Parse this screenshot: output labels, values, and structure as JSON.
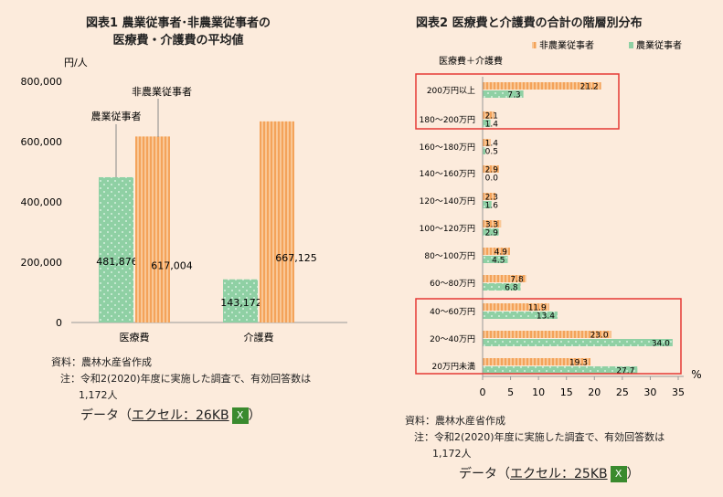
{
  "fig1": {
    "title1": "図表1 農業従事者･非農業従事者の",
    "title2": "医療費・介護費の平均値"
  },
  "fig2": {
    "title": "図表2 医療費と介護費の合計の階層別分布"
  },
  "chart_data": [
    {
      "type": "bar",
      "title": "図表1 農業従事者･非農業従事者の医療費・介護費の平均値",
      "ylabel": "円/人",
      "categories": [
        "医療費",
        "介護費"
      ],
      "series": [
        {
          "name": "農業従事者",
          "values": [
            481876,
            143172
          ],
          "labels": [
            "481,876",
            "143,172"
          ]
        },
        {
          "name": "非農業従事者",
          "values": [
            617004,
            667125
          ],
          "labels": [
            "617,004",
            "667,125"
          ]
        }
      ],
      "ylim": [
        0,
        800000
      ],
      "yticks": [
        0,
        200000,
        400000,
        600000,
        800000
      ],
      "ytick_labels": [
        "0",
        "200,000",
        "400,000",
        "600,000",
        "800,000"
      ]
    },
    {
      "type": "bar",
      "orientation": "horizontal",
      "title": "図表2 医療費と介護費の合計の階層別分布",
      "ylabel": "医療費＋介護費",
      "xlabel": "%",
      "categories": [
        "200万円以上",
        "180～200万円",
        "160～180万円",
        "140～160万円",
        "120～140万円",
        "100～120万円",
        "80～100万円",
        "60～80万円",
        "40～60万円",
        "20～40万円",
        "20万円未満"
      ],
      "series": [
        {
          "name": "非農業従事者",
          "values": [
            21.2,
            2.1,
            1.4,
            2.9,
            2.3,
            3.3,
            4.9,
            7.8,
            11.9,
            23.0,
            19.3
          ]
        },
        {
          "name": "農業従事者",
          "values": [
            7.3,
            1.4,
            0.5,
            0.0,
            1.6,
            2.9,
            4.5,
            6.8,
            13.4,
            34.0,
            27.7
          ]
        }
      ],
      "xlim": [
        0,
        35
      ],
      "xticks": [
        0,
        5,
        10,
        15,
        20,
        25,
        30,
        35
      ],
      "legend": "top-right"
    }
  ],
  "notes1": {
    "source": "資料：農林水産省作成",
    "note": "注：令和2(2020)年度に実施した調査で、有効回答数は",
    "note2": "1,172人",
    "data_pre": "データ（",
    "data_link": "エクセル：26KB",
    "data_post": "）"
  },
  "notes2": {
    "source": "資料：農林水産省作成",
    "note": "注：令和2(2020)年度に実施した調査で、有効回答数は",
    "note2": "1,172人",
    "data_pre": "データ（",
    "data_link": "エクセル：25KB",
    "data_post": "）"
  },
  "colors": {
    "farm": "#8fd0a4",
    "nonfarm": "#f6ad6a",
    "highlight": "#e53935"
  }
}
